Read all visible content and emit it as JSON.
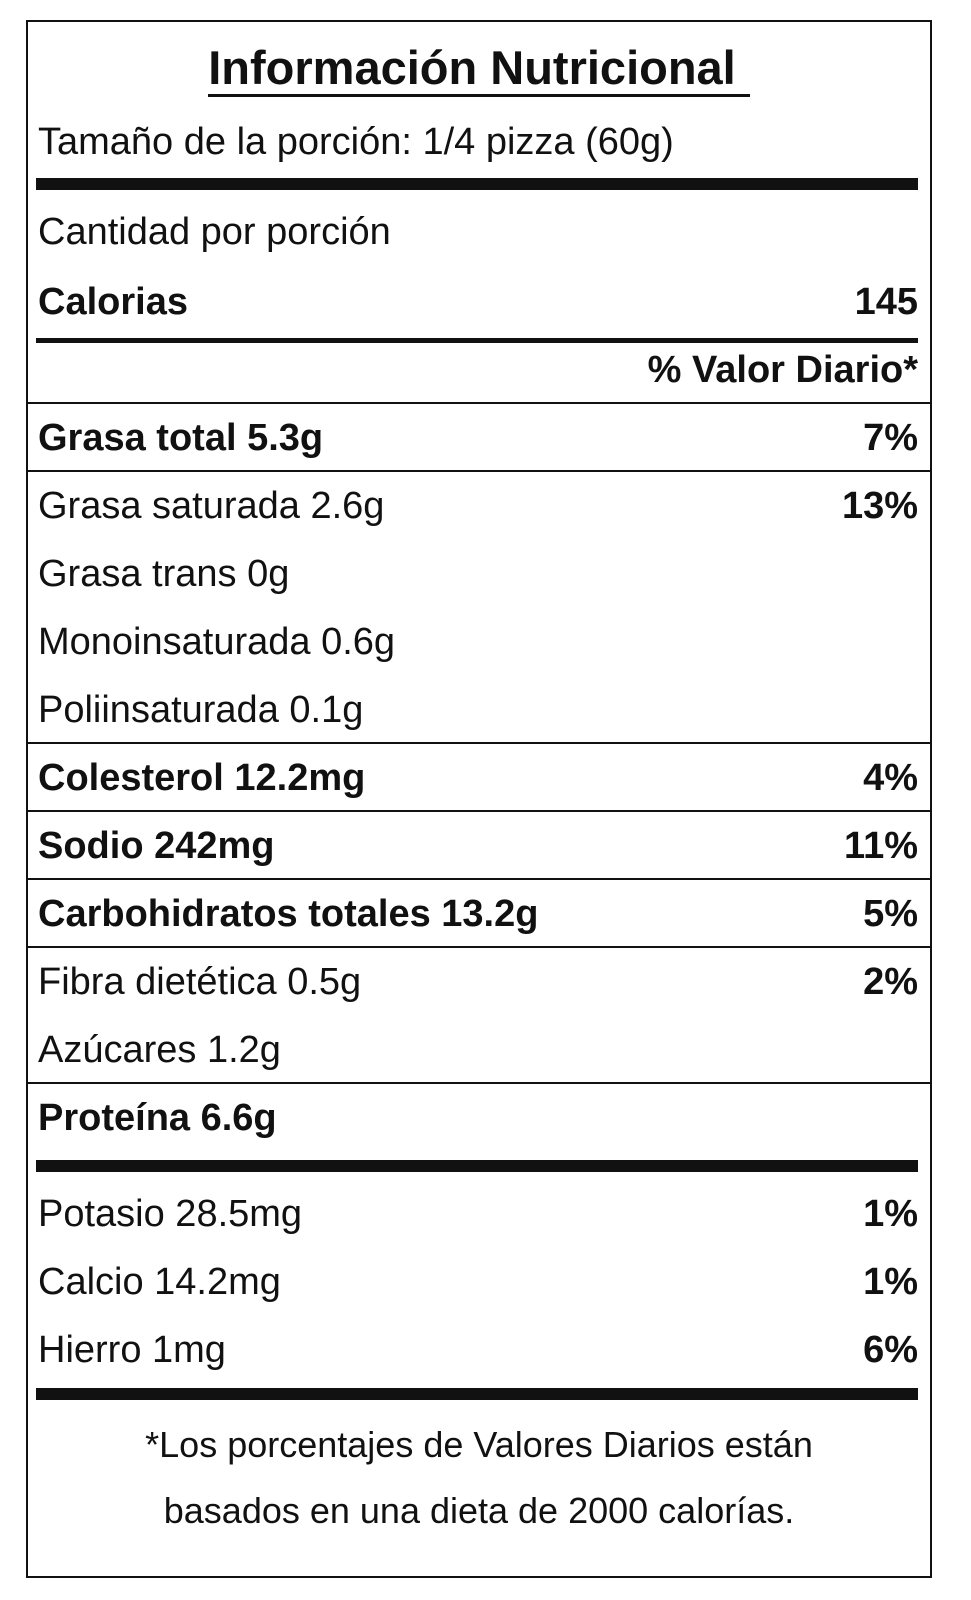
{
  "label": {
    "title": "Información Nutricional",
    "serving_size": "Tamaño de la porción: 1/4 pizza (60g)",
    "amount_per_serving": "Cantidad por porción",
    "calories_label": "Calorias",
    "calories_value": "145",
    "daily_value_header": "% Valor Diario*",
    "nutrients": [
      {
        "name": "Grasa total 5.3g",
        "dv": "7%"
      },
      {
        "name": "Grasa saturada 2.6g",
        "dv": "13%"
      },
      {
        "name": "Grasa trans 0g",
        "dv": ""
      },
      {
        "name": "Monoinsaturada 0.6g",
        "dv": ""
      },
      {
        "name": "Poliinsaturada 0.1g",
        "dv": ""
      },
      {
        "name": "Colesterol 12.2mg",
        "dv": "4%"
      },
      {
        "name": "Sodio 242mg",
        "dv": "11%"
      },
      {
        "name": "Carbohidratos totales 13.2g",
        "dv": "5%"
      },
      {
        "name": "Fibra dietética 0.5g",
        "dv": "2%"
      },
      {
        "name": "Azúcares 1.2g",
        "dv": ""
      },
      {
        "name": "Proteína 6.6g",
        "dv": ""
      }
    ],
    "minerals": [
      {
        "name": "Potasio 28.5mg",
        "dv": "1%"
      },
      {
        "name": "Calcio 14.2mg",
        "dv": "1%"
      },
      {
        "name": "Hierro 1mg",
        "dv": "6%"
      }
    ],
    "footnote_line1": "*Los porcentajes de Valores Diarios están",
    "footnote_line2": "basados en una dieta de 2000 calorías."
  }
}
